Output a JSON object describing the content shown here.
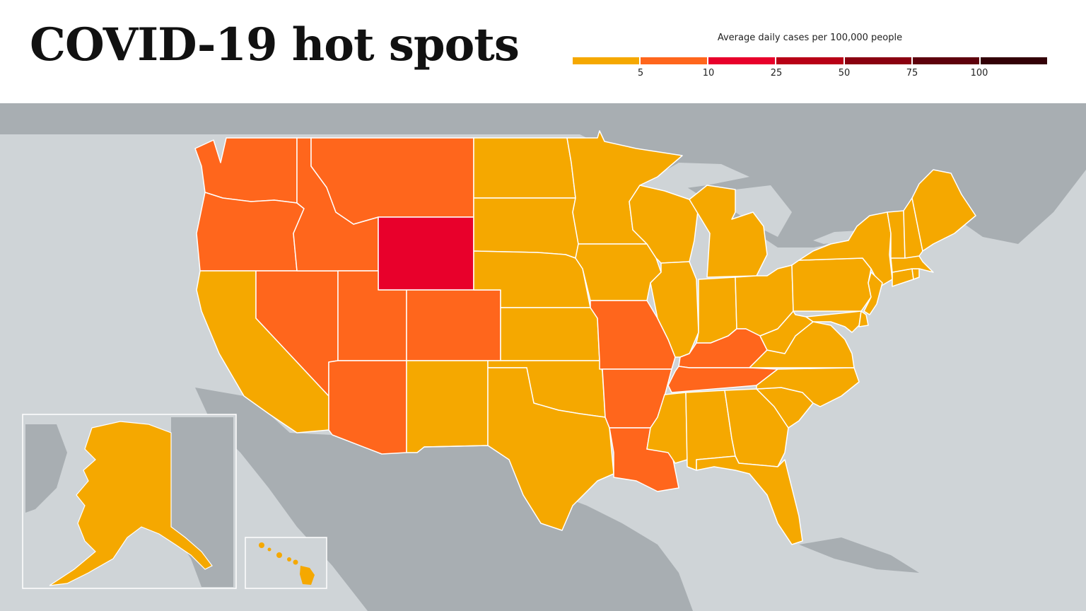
{
  "title": "COVID-19 hot spots",
  "legend": {
    "title": "Average daily cases per 100,000 people",
    "ticks": [
      "5",
      "10",
      "25",
      "50",
      "75",
      "100"
    ],
    "colors": [
      "#f5a800",
      "#ff661c",
      "#e8002b",
      "#b80016",
      "#8a0010",
      "#5e000c",
      "#330006"
    ]
  },
  "colors": {
    "water": "#cfd4d7",
    "land": "#a8aeb2",
    "border": "#ffffff",
    "tier1": "#f5a800",
    "tier2": "#ff661c",
    "tier3": "#e8002b"
  },
  "states": [
    {
      "name": "Washington",
      "tier": 2
    },
    {
      "name": "Oregon",
      "tier": 2
    },
    {
      "name": "California",
      "tier": 1
    },
    {
      "name": "Nevada",
      "tier": 2
    },
    {
      "name": "Idaho",
      "tier": 2
    },
    {
      "name": "Montana",
      "tier": 2
    },
    {
      "name": "Wyoming",
      "tier": 3
    },
    {
      "name": "Utah",
      "tier": 2
    },
    {
      "name": "Arizona",
      "tier": 2
    },
    {
      "name": "Colorado",
      "tier": 2
    },
    {
      "name": "New Mexico",
      "tier": 1
    },
    {
      "name": "North Dakota",
      "tier": 1
    },
    {
      "name": "South Dakota",
      "tier": 1
    },
    {
      "name": "Nebraska",
      "tier": 1
    },
    {
      "name": "Kansas",
      "tier": 1
    },
    {
      "name": "Oklahoma",
      "tier": 1
    },
    {
      "name": "Texas",
      "tier": 1
    },
    {
      "name": "Minnesota",
      "tier": 1
    },
    {
      "name": "Iowa",
      "tier": 1
    },
    {
      "name": "Missouri",
      "tier": 2
    },
    {
      "name": "Arkansas",
      "tier": 2
    },
    {
      "name": "Louisiana",
      "tier": 2
    },
    {
      "name": "Wisconsin",
      "tier": 1
    },
    {
      "name": "Illinois",
      "tier": 1
    },
    {
      "name": "Michigan",
      "tier": 1
    },
    {
      "name": "Indiana",
      "tier": 1
    },
    {
      "name": "Ohio",
      "tier": 1
    },
    {
      "name": "Kentucky",
      "tier": 2
    },
    {
      "name": "Tennessee",
      "tier": 2
    },
    {
      "name": "Mississippi",
      "tier": 1
    },
    {
      "name": "Alabama",
      "tier": 1
    },
    {
      "name": "Georgia",
      "tier": 1
    },
    {
      "name": "Florida",
      "tier": 1
    },
    {
      "name": "South Carolina",
      "tier": 1
    },
    {
      "name": "North Carolina",
      "tier": 1
    },
    {
      "name": "Virginia",
      "tier": 1
    },
    {
      "name": "West Virginia",
      "tier": 1
    },
    {
      "name": "Pennsylvania",
      "tier": 1
    },
    {
      "name": "New York",
      "tier": 1
    },
    {
      "name": "Maryland",
      "tier": 1
    },
    {
      "name": "Delaware",
      "tier": 1
    },
    {
      "name": "New Jersey",
      "tier": 1
    },
    {
      "name": "Connecticut",
      "tier": 1
    },
    {
      "name": "Rhode Island",
      "tier": 1
    },
    {
      "name": "Massachusetts",
      "tier": 1
    },
    {
      "name": "Vermont",
      "tier": 1
    },
    {
      "name": "New Hampshire",
      "tier": 1
    },
    {
      "name": "Maine",
      "tier": 1
    },
    {
      "name": "Alaska",
      "tier": 1
    },
    {
      "name": "Hawaii",
      "tier": 1
    }
  ]
}
